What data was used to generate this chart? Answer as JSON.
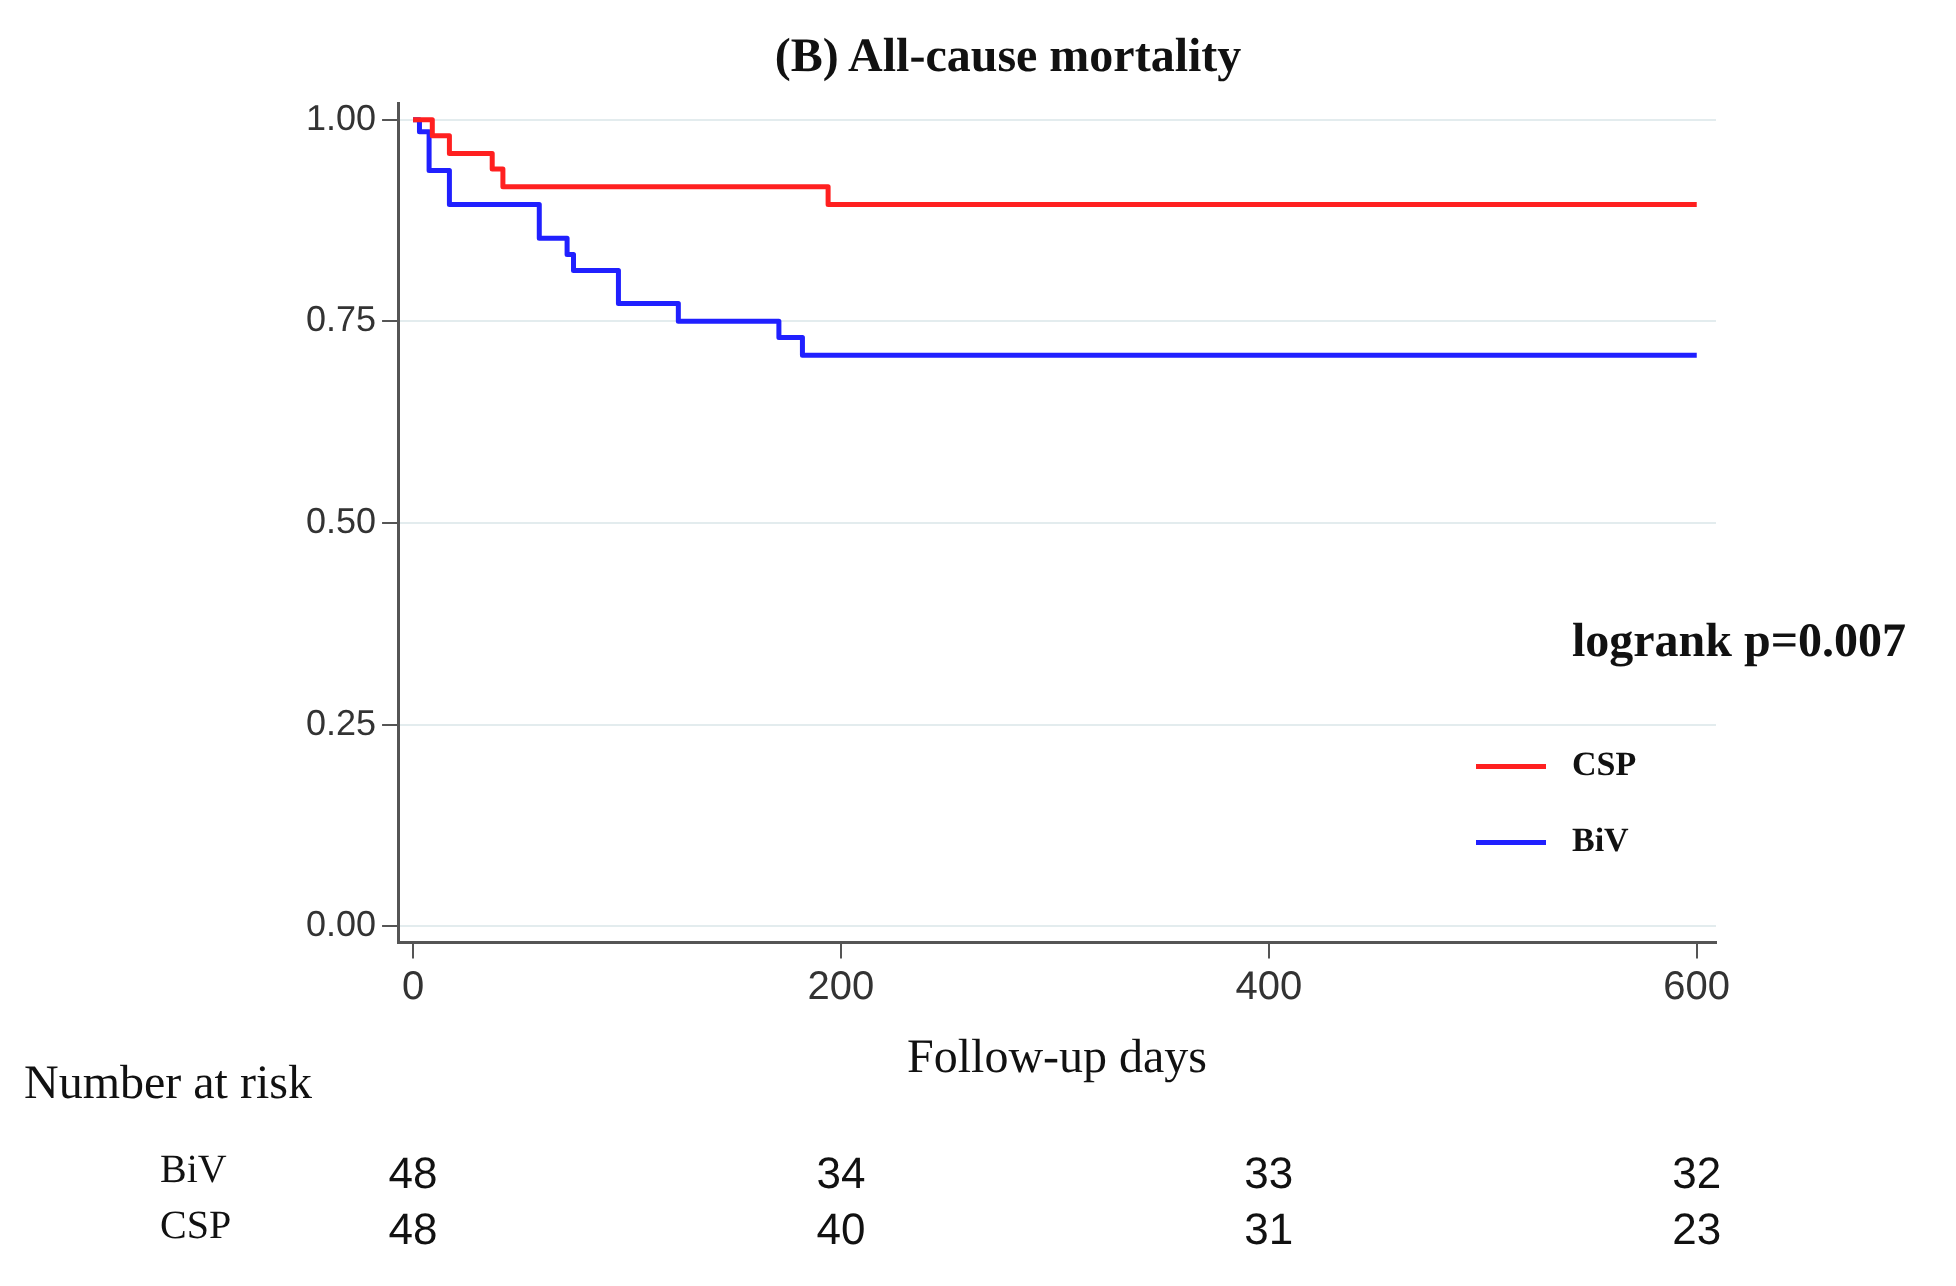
{
  "chart_data": {
    "type": "step",
    "title": "(B) All-cause mortality",
    "xlabel": "Follow-up days",
    "xlim": [
      -7,
      609
    ],
    "xticks": [
      0,
      200,
      400,
      600
    ],
    "ylim": [
      -0.02,
      1.02
    ],
    "yticks": [
      {
        "value": 0,
        "label": "0.00"
      },
      {
        "value": 0.25,
        "label": "0.25"
      },
      {
        "value": 0.5,
        "label": "0.50"
      },
      {
        "value": 0.75,
        "label": "0.75"
      },
      {
        "value": 1,
        "label": "1.00"
      }
    ],
    "grid": "y",
    "legend": "bottom right",
    "line_style": "solid",
    "marker": "none",
    "series": [
      {
        "name": "CSP",
        "color": "#ff2020",
        "x": [
          0,
          9,
          17,
          37,
          42,
          194,
          600
        ],
        "values": [
          1,
          0.98,
          0.958,
          0.939,
          0.917,
          0.895,
          0.895
        ]
      },
      {
        "name": "BiV",
        "color": "#2020ff",
        "x": [
          0,
          3,
          7.5,
          17,
          59,
          72,
          75,
          96,
          124,
          171,
          182,
          600
        ],
        "values": [
          1,
          0.985,
          0.937,
          0.895,
          0.853,
          0.833,
          0.813,
          0.772,
          0.75,
          0.73,
          0.708,
          0.708
        ]
      }
    ],
    "annotations": [
      "logrank p=0.007",
      "Number at risk",
      "BiV",
      "CSP",
      "48",
      "34",
      "33",
      "32",
      "48",
      "40",
      "31",
      "23"
    ]
  }
}
